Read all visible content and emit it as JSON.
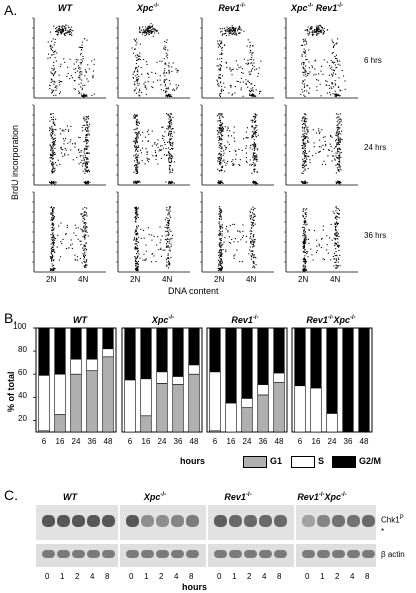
{
  "panel_a": {
    "letter": "A.",
    "genotypes": [
      "WT",
      "Xpc",
      "Rev1",
      "Xpc",
      "Rev1"
    ],
    "genotype_sup": "-/-",
    "rows": [
      "6 hrs",
      "24 hrs",
      "36 hrs"
    ],
    "ylabel": "BrdU incorporation",
    "xlabel": "DNA content",
    "ticks": [
      "2N",
      "4N"
    ]
  },
  "panel_b": {
    "letter": "B.",
    "titles": [
      "WT",
      "Xpc",
      "Rev1",
      "Rev1",
      "Xpc"
    ],
    "sup": "-/-",
    "ylabel": "% of total",
    "yticks": [
      "20",
      "40",
      "60",
      "80",
      "100"
    ],
    "xlabel": "hours",
    "legend": [
      "G1",
      "S",
      "G2/M"
    ],
    "colors": {
      "G1": "#b0b0b0",
      "S": "#ffffff",
      "G2M": "#000000"
    }
  },
  "chart_data": {
    "type": "bar",
    "stacked": true,
    "categories": [
      "6",
      "16",
      "24",
      "36",
      "48"
    ],
    "ylim": [
      10,
      100
    ],
    "ylabel": "% of total",
    "xlabel": "hours",
    "groups": [
      {
        "name": "WT",
        "G1": [
          11,
          25,
          60,
          63,
          75
        ],
        "S": [
          48,
          35,
          13,
          10,
          7
        ]
      },
      {
        "name": "Xpc-/-",
        "G1": [
          9,
          24,
          52,
          51,
          60
        ],
        "S": [
          46,
          32,
          10,
          7,
          8
        ]
      },
      {
        "name": "Rev1-/-",
        "G1": [
          11,
          7,
          31,
          42,
          53
        ],
        "S": [
          51,
          28,
          8,
          9,
          8
        ]
      },
      {
        "name": "Rev1-/-Xpc-/-",
        "G1": [
          0,
          0,
          5,
          4,
          5
        ],
        "S": [
          50,
          48,
          21,
          5,
          5
        ]
      }
    ]
  },
  "panel_c": {
    "letter": "C.",
    "titles": [
      "WT",
      "Xpc",
      "Rev1",
      "Rev1",
      "Xpc"
    ],
    "sup": "-/-",
    "lanes": [
      "0",
      "1",
      "2",
      "4",
      "8"
    ],
    "xlabel": "hours",
    "band1": "Chk1",
    "band1_sup": "P",
    "star": "*",
    "band2": "β actin"
  }
}
